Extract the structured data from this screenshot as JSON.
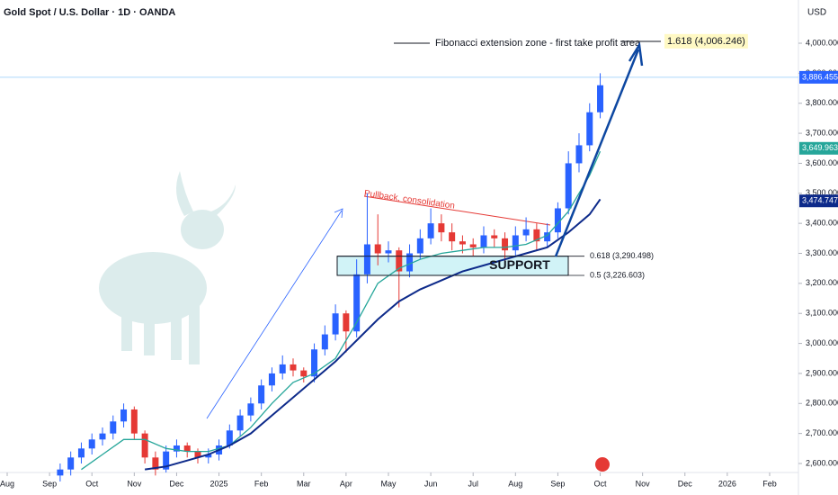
{
  "chart_data": {
    "type": "candlestick",
    "title": "Gold Spot / U.S. Dollar · 1D · OANDA",
    "currency": "USD",
    "xlim": [
      -0.17,
      18.68
    ],
    "ylim": [
      2570,
      4144
    ],
    "xticks": [
      {
        "value": 0,
        "label": "Aug"
      },
      {
        "value": 1,
        "label": "Sep"
      },
      {
        "value": 2,
        "label": "Oct"
      },
      {
        "value": 3,
        "label": "Nov"
      },
      {
        "value": 4,
        "label": "Dec"
      },
      {
        "value": 5,
        "label": "2025"
      },
      {
        "value": 6,
        "label": "Feb"
      },
      {
        "value": 7,
        "label": "Mar"
      },
      {
        "value": 8,
        "label": "Apr"
      },
      {
        "value": 9,
        "label": "May"
      },
      {
        "value": 10,
        "label": "Jun"
      },
      {
        "value": 11,
        "label": "Jul"
      },
      {
        "value": 12,
        "label": "Aug"
      },
      {
        "value": 13,
        "label": "Sep"
      },
      {
        "value": 14,
        "label": "Oct"
      },
      {
        "value": 15,
        "label": "Nov"
      },
      {
        "value": 16,
        "label": "Dec"
      },
      {
        "value": 17,
        "label": "2026"
      },
      {
        "value": 18,
        "label": "Feb"
      }
    ],
    "yticks": [
      {
        "value": 2600,
        "label": "2,600.000"
      },
      {
        "value": 2700,
        "label": "2,700.000"
      },
      {
        "value": 2800,
        "label": "2,800.000"
      },
      {
        "value": 2900,
        "label": "2,900.000"
      },
      {
        "value": 3000,
        "label": "3,000.000"
      },
      {
        "value": 3100,
        "label": "3,100.000"
      },
      {
        "value": 3200,
        "label": "3,200.000"
      },
      {
        "value": 3300,
        "label": "3,300.000"
      },
      {
        "value": 3400,
        "label": "3,400.000"
      },
      {
        "value": 3500,
        "label": "3,500.000"
      },
      {
        "value": 3600,
        "label": "3,600.000"
      },
      {
        "value": 3700,
        "label": "3,700.000"
      },
      {
        "value": 3800,
        "label": "3,800.000"
      },
      {
        "value": 3900,
        "label": "3,900.000"
      },
      {
        "value": 4000,
        "label": "4,000.000"
      }
    ],
    "candles": {
      "up_color": "#2962ff",
      "down_color": "#e53935",
      "x": [
        1.25,
        1.5,
        1.75,
        2.0,
        2.25,
        2.5,
        2.75,
        3.0,
        3.25,
        3.5,
        3.75,
        4.0,
        4.25,
        4.5,
        4.75,
        5.0,
        5.25,
        5.5,
        5.75,
        6.0,
        6.25,
        6.5,
        6.75,
        7.0,
        7.25,
        7.5,
        7.75,
        8.0,
        8.25,
        8.5,
        8.75,
        9.0,
        9.25,
        9.5,
        9.75,
        10.0,
        10.25,
        10.5,
        10.75,
        11.0,
        11.25,
        11.5,
        11.75,
        12.0,
        12.25,
        12.5,
        12.75,
        13.0,
        13.25,
        13.5,
        13.75,
        14.0
      ],
      "open": [
        2560,
        2580,
        2620,
        2650,
        2680,
        2700,
        2740,
        2780,
        2700,
        2620,
        2580,
        2640,
        2660,
        2640,
        2620,
        2630,
        2660,
        2710,
        2760,
        2800,
        2860,
        2900,
        2930,
        2910,
        2890,
        2980,
        3030,
        3100,
        3040,
        3230,
        3330,
        3300,
        3310,
        3240,
        3300,
        3350,
        3400,
        3370,
        3340,
        3330,
        3320,
        3360,
        3350,
        3310,
        3360,
        3380,
        3340,
        3370,
        3450,
        3600,
        3660,
        3770
      ],
      "high": [
        2600,
        2640,
        2670,
        2700,
        2720,
        2760,
        2800,
        2790,
        2710,
        2640,
        2660,
        2680,
        2670,
        2650,
        2650,
        2680,
        2730,
        2780,
        2820,
        2880,
        2920,
        2960,
        2950,
        2920,
        3000,
        3060,
        3130,
        3110,
        3280,
        3500,
        3430,
        3340,
        3320,
        3330,
        3380,
        3450,
        3430,
        3400,
        3360,
        3350,
        3390,
        3380,
        3370,
        3390,
        3420,
        3400,
        3400,
        3470,
        3640,
        3700,
        3800,
        3900
      ],
      "low": [
        2540,
        2560,
        2600,
        2630,
        2660,
        2680,
        2720,
        2680,
        2600,
        2560,
        2570,
        2620,
        2620,
        2600,
        2600,
        2610,
        2650,
        2690,
        2740,
        2780,
        2840,
        2880,
        2890,
        2870,
        2870,
        2960,
        3010,
        2970,
        3020,
        3200,
        3260,
        3270,
        3120,
        3220,
        3280,
        3330,
        3340,
        3310,
        3300,
        3290,
        3300,
        3320,
        3270,
        3290,
        3340,
        3310,
        3320,
        3350,
        3430,
        3570,
        3640,
        3750
      ],
      "close": [
        2580,
        2620,
        2650,
        2680,
        2700,
        2740,
        2780,
        2700,
        2620,
        2580,
        2640,
        2660,
        2640,
        2620,
        2630,
        2660,
        2710,
        2760,
        2800,
        2860,
        2900,
        2930,
        2910,
        2890,
        2980,
        3030,
        3100,
        3040,
        3230,
        3330,
        3300,
        3310,
        3240,
        3300,
        3350,
        3400,
        3370,
        3340,
        3330,
        3320,
        3360,
        3350,
        3310,
        3360,
        3380,
        3340,
        3370,
        3450,
        3600,
        3660,
        3770,
        3860
      ]
    },
    "ma_lines": [
      {
        "color": "#26a69a",
        "x": [
          1.75,
          2.25,
          2.75,
          3.25,
          3.75,
          4.25,
          4.75,
          5.25,
          5.75,
          6.25,
          6.75,
          7.25,
          7.75,
          8.25,
          8.75,
          9.25,
          9.75,
          10.25,
          10.75,
          11.25,
          11.75,
          12.25,
          12.75,
          13.25,
          13.75,
          14.0
        ],
        "values": [
          2580,
          2630,
          2680,
          2680,
          2650,
          2640,
          2640,
          2660,
          2720,
          2800,
          2870,
          2900,
          2950,
          3070,
          3200,
          3250,
          3280,
          3300,
          3310,
          3320,
          3320,
          3330,
          3360,
          3440,
          3560,
          3640
        ]
      },
      {
        "color": "#0d2a8a",
        "x": [
          3.25,
          3.75,
          4.25,
          4.75,
          5.25,
          5.75,
          6.25,
          6.75,
          7.25,
          7.75,
          8.25,
          8.75,
          9.25,
          9.75,
          10.25,
          10.75,
          11.25,
          11.75,
          12.25,
          12.75,
          13.25,
          13.75,
          14.0
        ],
        "values": [
          2580,
          2590,
          2610,
          2630,
          2660,
          2700,
          2760,
          2820,
          2880,
          2940,
          3010,
          3080,
          3140,
          3180,
          3210,
          3240,
          3260,
          3280,
          3300,
          3320,
          3370,
          3430,
          3480
        ]
      }
    ],
    "price_labels": [
      {
        "value": 3886.455,
        "label": "3,886.455",
        "color": "#2962ff"
      },
      {
        "value": 3649.963,
        "label": "3,649.963",
        "color": "#26a69a"
      },
      {
        "value": 3474.747,
        "label": "3,474.747",
        "color": "#0d2a8a"
      }
    ],
    "fib_levels": [
      {
        "value": 3290.498,
        "label": "0.618 (3,290.498)"
      },
      {
        "value": 3226.603,
        "label": "0.5 (3,226.603)"
      }
    ],
    "target": {
      "value": 4006.246,
      "label": "1.618 (4,006.246)",
      "text": "Fibonacci extension zone - first take profit area"
    },
    "support_label": "SUPPORT",
    "pullback_label": "Pullback, consolidation"
  }
}
